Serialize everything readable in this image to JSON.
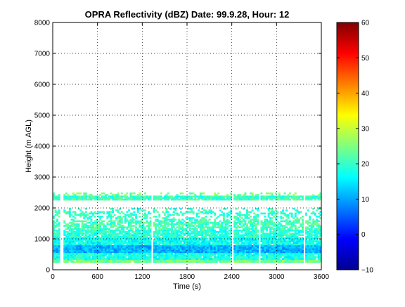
{
  "chart_data": {
    "type": "heatmap",
    "title": "OPRA Reflectivity (dBZ)  Date: 99.9.28, Hour: 12",
    "xlabel": "Time (s)",
    "ylabel": "Height (m AGL)",
    "xlim": [
      0,
      3600
    ],
    "ylim": [
      0,
      8000
    ],
    "x_ticks": [
      0,
      600,
      1200,
      1800,
      2400,
      3000,
      3600
    ],
    "y_ticks": [
      0,
      1000,
      2000,
      3000,
      4000,
      5000,
      6000,
      7000,
      8000
    ],
    "grid": true,
    "colorbar": {
      "colormap": "jet",
      "clim": [
        -10,
        60
      ],
      "ticks": [
        -10,
        0,
        10,
        20,
        30,
        40,
        50,
        60
      ],
      "tick_labels": [
        "−10",
        "0",
        "10",
        "20",
        "30",
        "40",
        "50",
        "60"
      ]
    },
    "layers": [
      {
        "height_range": [
          230,
          330
        ],
        "dbz": 24,
        "coverage": 0.97
      },
      {
        "height_range": [
          330,
          550
        ],
        "dbz": 18,
        "coverage": 0.96
      },
      {
        "height_range": [
          550,
          800
        ],
        "dbz": 11,
        "coverage": 1.0
      },
      {
        "height_range": [
          800,
          1050
        ],
        "dbz": 17,
        "coverage": 0.95
      },
      {
        "height_range": [
          1050,
          1300
        ],
        "dbz": 19,
        "coverage": 0.88
      },
      {
        "height_range": [
          1300,
          1600
        ],
        "dbz": 21,
        "coverage": 0.72
      },
      {
        "height_range": [
          1600,
          1900
        ],
        "dbz": 20,
        "coverage": 0.45
      },
      {
        "height_range": [
          1900,
          2000
        ],
        "dbz": 19,
        "coverage": 0.25
      },
      {
        "height_range": [
          2250,
          2300
        ],
        "dbz": 22,
        "coverage": 0.9
      },
      {
        "height_range": [
          2300,
          2400
        ],
        "dbz": 20,
        "coverage": 0.95
      },
      {
        "height_range": [
          2400,
          2500
        ],
        "dbz": 24,
        "coverage": 0.3
      }
    ],
    "data_gaps_time": [
      [
        100,
        140
      ],
      [
        1325,
        1350
      ],
      [
        2395,
        2420
      ],
      [
        2770,
        2790
      ],
      [
        3360,
        3380
      ]
    ]
  }
}
